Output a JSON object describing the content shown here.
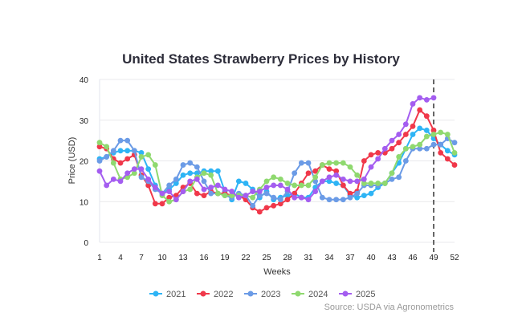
{
  "chart_data": {
    "type": "line",
    "title": "United States Strawberry Prices by History",
    "xlabel": "Weeks",
    "ylabel": "Price (USD)",
    "source": "Source: USDA via Agronometrics",
    "xlim": [
      1,
      52
    ],
    "ylim": [
      0,
      40
    ],
    "x_ticks": [
      1,
      4,
      7,
      10,
      13,
      16,
      19,
      22,
      25,
      28,
      31,
      34,
      37,
      40,
      43,
      46,
      49,
      52
    ],
    "y_ticks": [
      0,
      10,
      20,
      30,
      40
    ],
    "grid": "horizontal",
    "legend": "bottom",
    "current_week_marker": 49,
    "series": [
      {
        "name": "2021",
        "color": "#2eb4f5",
        "values": [
          20.5,
          21,
          22,
          22.5,
          22.5,
          22.5,
          22,
          18,
          14,
          12,
          13,
          14.5,
          16.5,
          17,
          17,
          17.5,
          17.5,
          17.5,
          12.5,
          10.5,
          15,
          14.5,
          13,
          11,
          12.5,
          10.5,
          11,
          11.5,
          12,
          11,
          11,
          13.5,
          15,
          15,
          14.5,
          14,
          11.5,
          11,
          11.5,
          12,
          13.5,
          14.5,
          17,
          19.5,
          23,
          26.5,
          28,
          27.5,
          25.5,
          24,
          22.5,
          21.5
        ]
      },
      {
        "name": "2022",
        "color": "#f0384a",
        "values": [
          23.5,
          23,
          20.5,
          19.5,
          20.5,
          21.5,
          16.5,
          14,
          9.5,
          9.5,
          11,
          11.5,
          13.5,
          14.5,
          12,
          11.5,
          12.5,
          12,
          12,
          11.5,
          11.5,
          10.5,
          8.5,
          7.5,
          8.5,
          9,
          9.5,
          10.5,
          12,
          14.5,
          17,
          17.5,
          19,
          18,
          17.5,
          14,
          12,
          12.5,
          20,
          21.5,
          22,
          22,
          23,
          24.5,
          26.5,
          28.5,
          32.5,
          31,
          27.5,
          22,
          20.5,
          19
        ]
      },
      {
        "name": "2023",
        "color": "#6b9be6",
        "values": [
          20,
          21,
          22.5,
          25,
          25,
          22.5,
          16,
          15,
          13,
          12,
          14,
          15.5,
          19,
          19.5,
          18.5,
          15,
          12,
          12,
          11.5,
          11,
          12,
          11.5,
          9,
          11.5,
          12,
          11,
          10.5,
          12.5,
          17,
          19.5,
          19.5,
          15,
          11,
          10.5,
          10.5,
          10.5,
          11,
          12,
          14,
          14,
          14,
          14.5,
          15.5,
          16,
          20,
          23,
          23,
          23,
          24,
          24,
          25.5,
          24.5
        ]
      },
      {
        "name": "2024",
        "color": "#8fd96f",
        "values": [
          24.5,
          23.5,
          19.5,
          15.5,
          16,
          17,
          21,
          21.5,
          19,
          11.5,
          10,
          10.5,
          12.5,
          13,
          16,
          17,
          16.5,
          12,
          11.5,
          11.5,
          11.5,
          11.5,
          11,
          13,
          15,
          16,
          15.5,
          14.5,
          14,
          14,
          14,
          16,
          19,
          19.5,
          19.5,
          19.5,
          18.5,
          16.5,
          14.5,
          14.5,
          14.5,
          14.5,
          17,
          21,
          23,
          23.5,
          24,
          26,
          26.5,
          27,
          26.5,
          22
        ]
      },
      {
        "name": "2025",
        "color": "#a45df0",
        "values": [
          17.5,
          14,
          15.5,
          15,
          17,
          18,
          18,
          15.5,
          13.5,
          12,
          12.5,
          10.5,
          12.5,
          15,
          15.5,
          13,
          13.5,
          14,
          13,
          12.5,
          11,
          11.5,
          12.5,
          12.5,
          13.5,
          14,
          14,
          13,
          11,
          11,
          10.5,
          12.5,
          15,
          16,
          16.5,
          15.5,
          15,
          15,
          15.5,
          18.5,
          20.5,
          23,
          25,
          26.5,
          29,
          34,
          35.5,
          35,
          35.5
        ]
      }
    ]
  }
}
